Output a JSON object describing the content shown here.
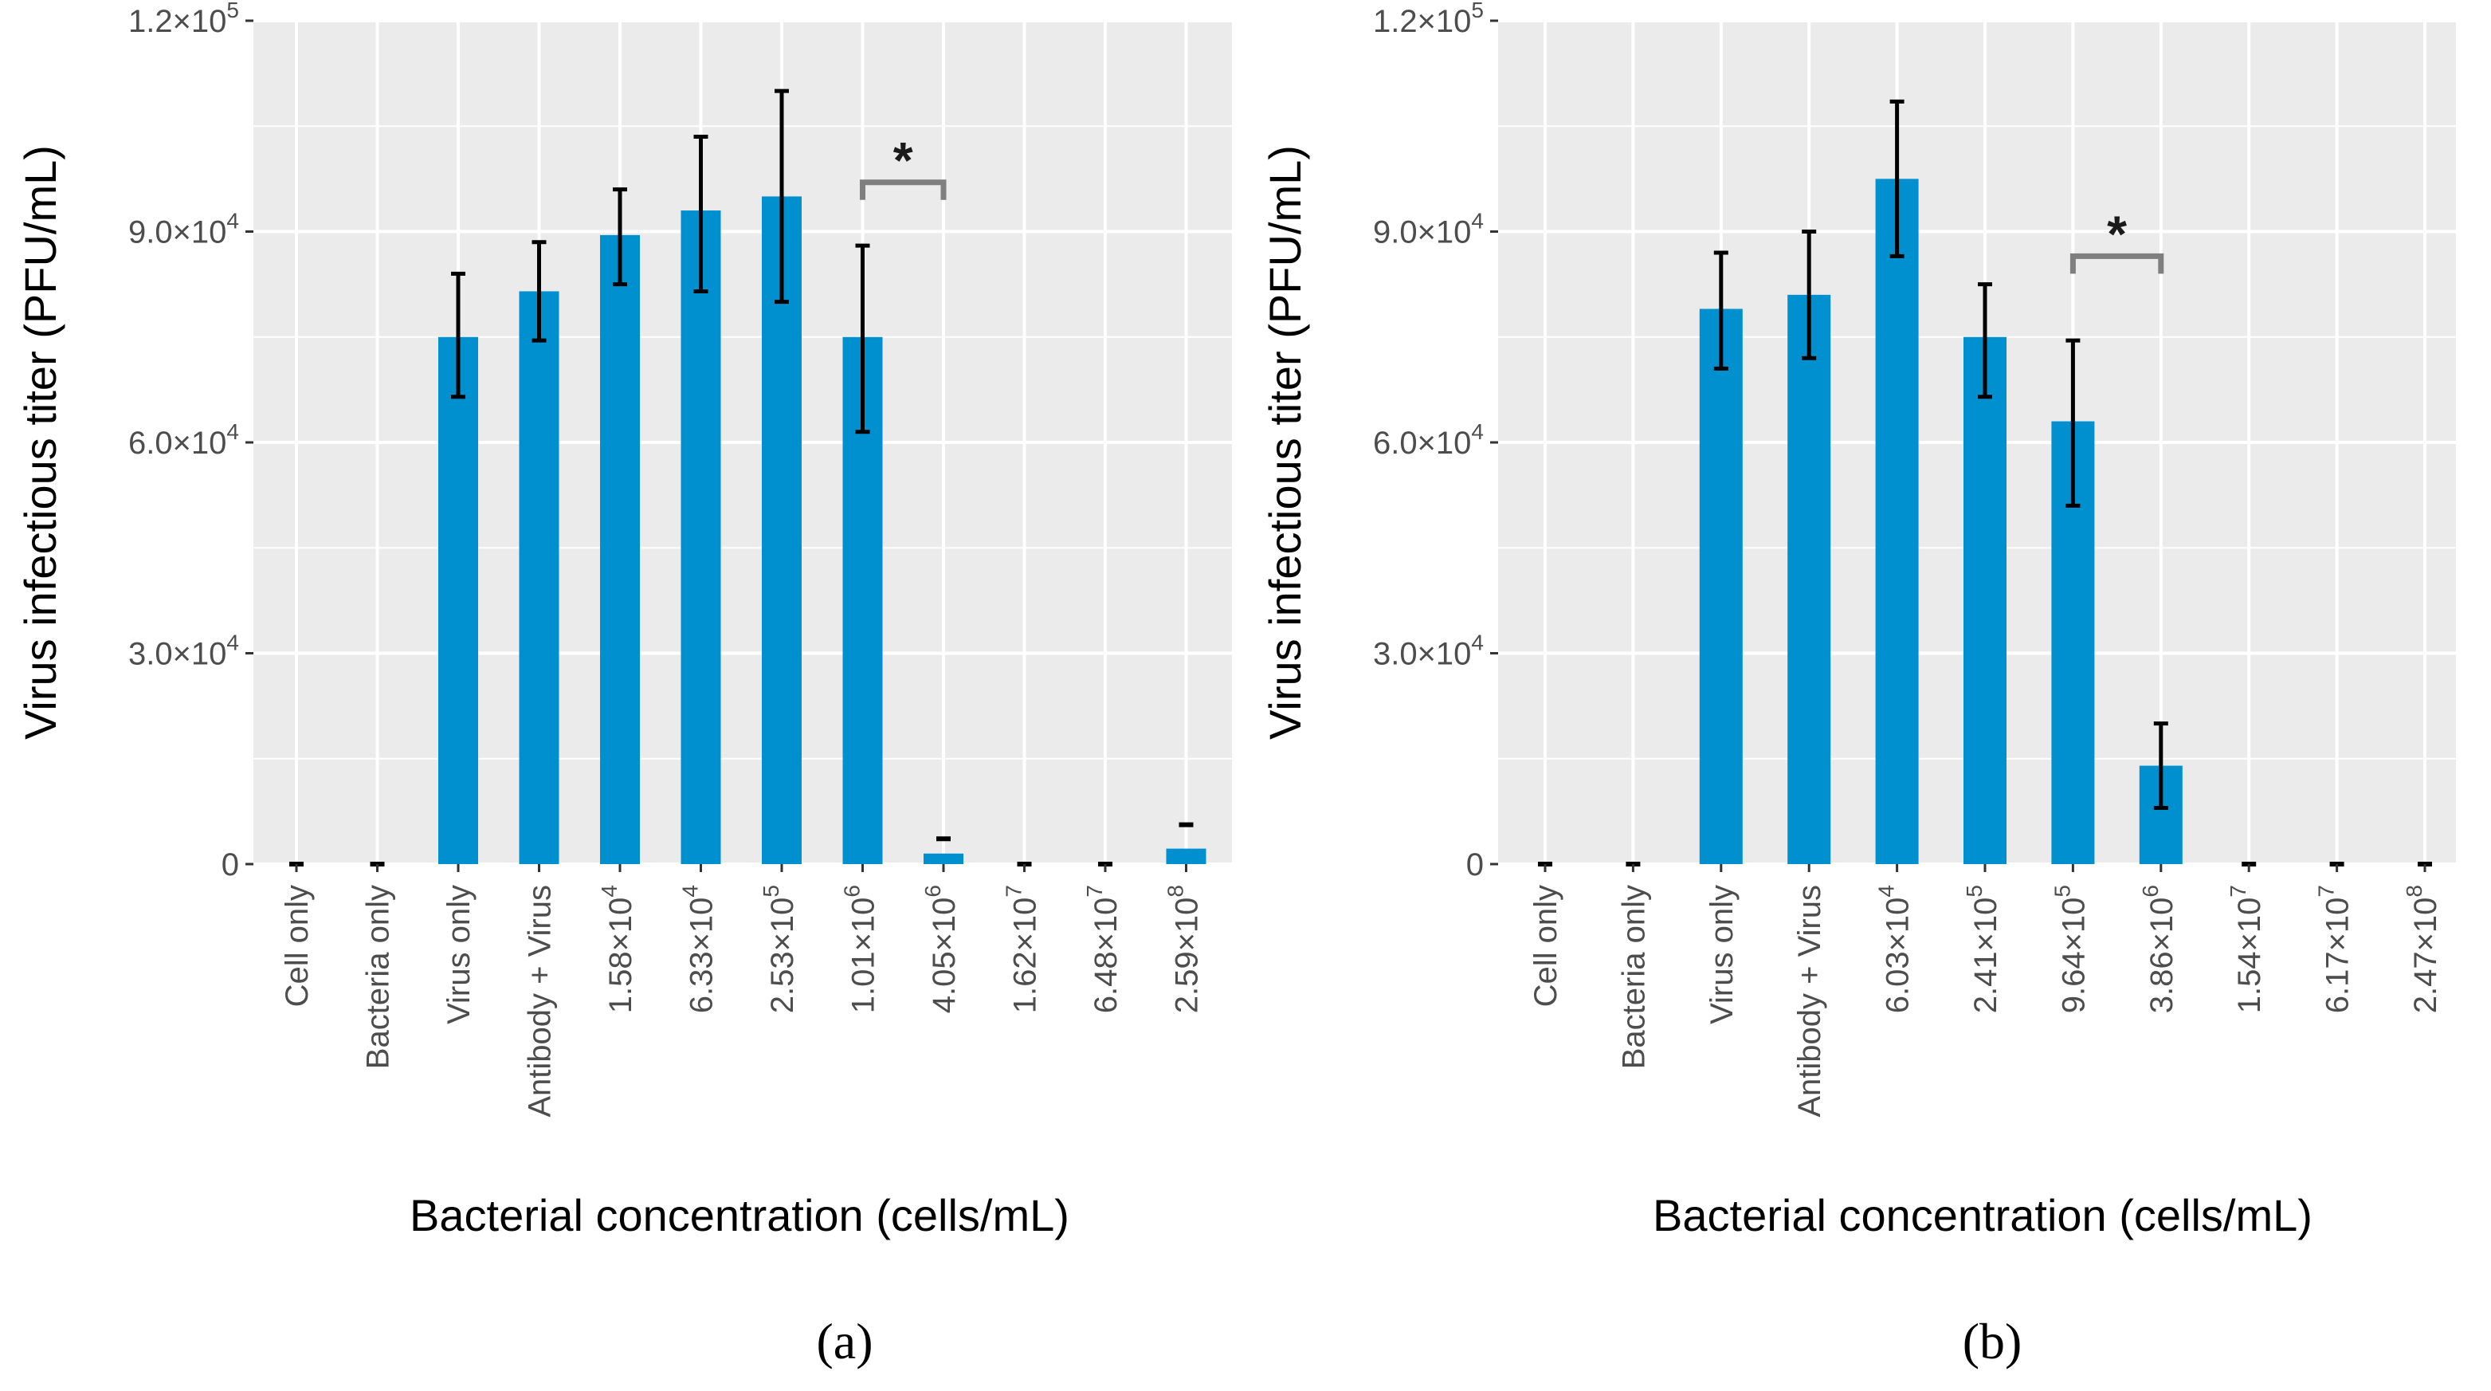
{
  "colors": {
    "panel_bg": "#ebebeb",
    "grid": "#ffffff",
    "bar": "#0090cf",
    "error_bar": "#000000",
    "bracket": "#7f7f7f",
    "tick_text": "#4d4d4d"
  },
  "chart_data": [
    {
      "type": "bar",
      "panel_label": "(a)",
      "xlabel": "Bacterial concentration (cells/mL)",
      "ylabel": "Virus infectious titer (PFU/mL)",
      "ylim": [
        0,
        120000
      ],
      "y_ticks": [
        {
          "value": 0,
          "mantissa": "0",
          "exponent": ""
        },
        {
          "value": 30000,
          "mantissa": "3.0×10",
          "exponent": "4"
        },
        {
          "value": 60000,
          "mantissa": "6.0×10",
          "exponent": "4"
        },
        {
          "value": 90000,
          "mantissa": "9.0×10",
          "exponent": "4"
        },
        {
          "value": 120000,
          "mantissa": "1.2×10",
          "exponent": "5"
        }
      ],
      "categories": [
        {
          "label": "Cell only",
          "exponent": ""
        },
        {
          "label": "Bacteria only",
          "exponent": ""
        },
        {
          "label": "Virus only",
          "exponent": ""
        },
        {
          "label": "Antibody + Virus",
          "exponent": ""
        },
        {
          "label": "1.58×10",
          "exponent": "4"
        },
        {
          "label": "6.33×10",
          "exponent": "4"
        },
        {
          "label": "2.53×10",
          "exponent": "5"
        },
        {
          "label": "1.01×10",
          "exponent": "6"
        },
        {
          "label": "4.05×10",
          "exponent": "6"
        },
        {
          "label": "1.62×10",
          "exponent": "7"
        },
        {
          "label": "6.48×10",
          "exponent": "7"
        },
        {
          "label": "2.59×10",
          "exponent": "8"
        }
      ],
      "values": [
        0,
        0,
        75000,
        81500,
        89500,
        93000,
        95000,
        75000,
        1500,
        0,
        0,
        2200
      ],
      "error_low": [
        0,
        0,
        66500,
        74500,
        82500,
        81500,
        80000,
        61500,
        3600,
        0,
        0,
        5600
      ],
      "error_high": [
        0,
        0,
        84000,
        88500,
        96000,
        103500,
        110000,
        88000,
        3600,
        0,
        0,
        5600
      ],
      "significance": {
        "from_index": 7,
        "to_index": 8,
        "label": "*",
        "level": 97000
      }
    },
    {
      "type": "bar",
      "panel_label": "(b)",
      "xlabel": "Bacterial concentration (cells/mL)",
      "ylabel": "Virus infectious titer (PFU/mL)",
      "ylim": [
        0,
        120000
      ],
      "y_ticks": [
        {
          "value": 0,
          "mantissa": "0",
          "exponent": ""
        },
        {
          "value": 30000,
          "mantissa": "3.0×10",
          "exponent": "4"
        },
        {
          "value": 60000,
          "mantissa": "6.0×10",
          "exponent": "4"
        },
        {
          "value": 90000,
          "mantissa": "9.0×10",
          "exponent": "4"
        },
        {
          "value": 120000,
          "mantissa": "1.2×10",
          "exponent": "5"
        }
      ],
      "categories": [
        {
          "label": "Cell only",
          "exponent": ""
        },
        {
          "label": "Bacteria only",
          "exponent": ""
        },
        {
          "label": "Virus only",
          "exponent": ""
        },
        {
          "label": "Antibody + Virus",
          "exponent": ""
        },
        {
          "label": "6.03×10",
          "exponent": "4"
        },
        {
          "label": "2.41×10",
          "exponent": "5"
        },
        {
          "label": "9.64×10",
          "exponent": "5"
        },
        {
          "label": "3.86×10",
          "exponent": "6"
        },
        {
          "label": "1.54×10",
          "exponent": "7"
        },
        {
          "label": "6.17×10",
          "exponent": "7"
        },
        {
          "label": "2.47×10",
          "exponent": "8"
        }
      ],
      "values": [
        0,
        0,
        79000,
        81000,
        97500,
        75000,
        63000,
        14000,
        0,
        0,
        0
      ],
      "error_low": [
        0,
        0,
        70500,
        72000,
        86500,
        66500,
        51000,
        8000,
        0,
        0,
        0
      ],
      "error_high": [
        0,
        0,
        87000,
        90000,
        108500,
        82500,
        74500,
        20000,
        0,
        0,
        0
      ],
      "significance": {
        "from_index": 6,
        "to_index": 7,
        "label": "*",
        "level": 86500
      }
    }
  ]
}
